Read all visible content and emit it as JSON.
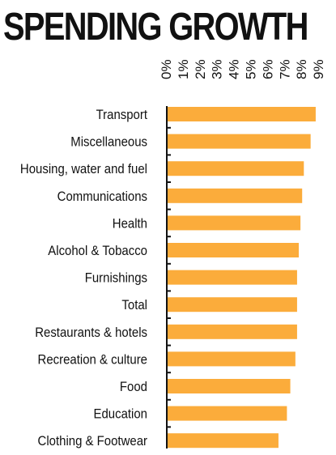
{
  "chart_data": {
    "type": "bar",
    "orientation": "horizontal",
    "title": "SPENDING GROWTH",
    "categories": [
      "Transport",
      "Miscellaneous",
      "Housing, water and fuel",
      "Communications",
      "Health",
      "Alcohol & Tobacco",
      "Furnishings",
      "Total",
      "Restaurants & hotels",
      "Recreation & culture",
      "Food",
      "Education",
      "Clothing & Footwear"
    ],
    "values": [
      8.8,
      8.5,
      8.1,
      8.0,
      7.9,
      7.8,
      7.7,
      7.7,
      7.7,
      7.6,
      7.3,
      7.1,
      6.6
    ],
    "xlim": [
      0,
      9
    ],
    "x_ticks": [
      "0%",
      "1%",
      "2%",
      "3%",
      "4%",
      "5%",
      "6%",
      "7%",
      "8%",
      "9%"
    ],
    "xlabel": "",
    "ylabel": "",
    "axis_position": "top",
    "grid": false,
    "legend": "none",
    "bar_color": "#FBAC3B",
    "axis_color": "#111111"
  }
}
